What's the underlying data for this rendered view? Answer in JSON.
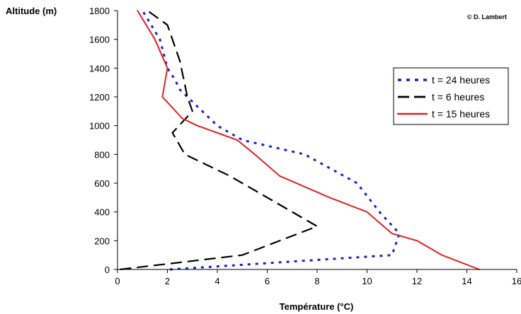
{
  "chart_data": {
    "type": "line",
    "xlabel": "Température (°C)",
    "ylabel": "Altitude (m)",
    "xlim": [
      0,
      16
    ],
    "ylim": [
      0,
      1800
    ],
    "xticks": [
      0,
      2,
      4,
      6,
      8,
      10,
      12,
      14,
      16
    ],
    "yticks": [
      0,
      200,
      400,
      600,
      800,
      1000,
      1200,
      1400,
      1600,
      1800
    ],
    "grid": false,
    "legend_position": "right",
    "credit": "© D. Lambert",
    "series": [
      {
        "name": "t = 24 heures",
        "color": "#1f1fc8",
        "dash": "dotted",
        "points": [
          [
            2.1,
            0
          ],
          [
            11.0,
            100
          ],
          [
            11.3,
            250
          ],
          [
            10.5,
            400
          ],
          [
            9.6,
            600
          ],
          [
            7.5,
            800
          ],
          [
            5.0,
            900
          ],
          [
            4.0,
            1000
          ],
          [
            2.5,
            1250
          ],
          [
            2.3,
            1320
          ],
          [
            2.0,
            1400
          ],
          [
            1.7,
            1600
          ],
          [
            1.0,
            1800
          ]
        ]
      },
      {
        "name": "t = 6 heures",
        "color": "#000000",
        "dash": "long",
        "points": [
          [
            0.1,
            0
          ],
          [
            5.0,
            100
          ],
          [
            8.0,
            300
          ],
          [
            6.0,
            500
          ],
          [
            4.5,
            650
          ],
          [
            2.7,
            800
          ],
          [
            2.2,
            950
          ],
          [
            3.0,
            1100
          ],
          [
            2.8,
            1200
          ],
          [
            2.5,
            1450
          ],
          [
            2.0,
            1700
          ],
          [
            1.2,
            1800
          ]
        ]
      },
      {
        "name": "t = 15 heures",
        "color": "#dd2222",
        "dash": "solid",
        "points": [
          [
            14.5,
            0
          ],
          [
            13.0,
            100
          ],
          [
            12.0,
            200
          ],
          [
            11.0,
            250
          ],
          [
            10.0,
            400
          ],
          [
            8.5,
            500
          ],
          [
            6.5,
            650
          ],
          [
            5.5,
            800
          ],
          [
            4.8,
            900
          ],
          [
            3.2,
            1000
          ],
          [
            2.6,
            1050
          ],
          [
            1.8,
            1200
          ],
          [
            2.0,
            1400
          ],
          [
            1.5,
            1600
          ],
          [
            0.8,
            1800
          ]
        ]
      }
    ]
  }
}
